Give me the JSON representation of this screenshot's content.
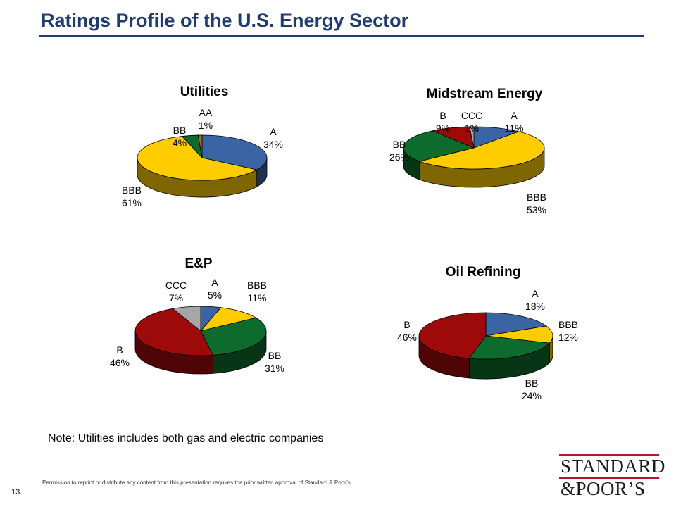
{
  "header": {
    "title": "Ratings Profile of the U.S. Energy Sector"
  },
  "colors": {
    "A": "#3a64a4",
    "BBB": "#ffcc00",
    "BB": "#0d6b2e",
    "B": "#9e0a0a",
    "CCC": "#a6a6a6",
    "AA": "#c05a1e",
    "title": "#1f3b70",
    "logo_rule": "#b8122e"
  },
  "chart_data": [
    {
      "type": "pie",
      "title": "Utilities",
      "slices": [
        {
          "label": "A",
          "value": 34,
          "pct_label": "34%"
        },
        {
          "label": "BBB",
          "value": 61,
          "pct_label": "61%"
        },
        {
          "label": "BB",
          "value": 4,
          "pct_label": "4%"
        },
        {
          "label": "AA",
          "value": 1,
          "pct_label": "1%"
        }
      ]
    },
    {
      "type": "pie",
      "title": "Midstream Energy",
      "slices": [
        {
          "label": "A",
          "value": 11,
          "pct_label": "11%"
        },
        {
          "label": "BBB",
          "value": 53,
          "pct_label": "53%"
        },
        {
          "label": "BB",
          "value": 26,
          "pct_label": "26%"
        },
        {
          "label": "B",
          "value": 9,
          "pct_label": "9%"
        },
        {
          "label": "CCC",
          "value": 1,
          "pct_label": "1%"
        }
      ]
    },
    {
      "type": "pie",
      "title": "E&P",
      "slices": [
        {
          "label": "A",
          "value": 5,
          "pct_label": "5%"
        },
        {
          "label": "BBB",
          "value": 11,
          "pct_label": "11%"
        },
        {
          "label": "BB",
          "value": 31,
          "pct_label": "31%"
        },
        {
          "label": "B",
          "value": 46,
          "pct_label": "46%"
        },
        {
          "label": "CCC",
          "value": 7,
          "pct_label": "7%"
        }
      ]
    },
    {
      "type": "pie",
      "title": "Oil Refining",
      "slices": [
        {
          "label": "A",
          "value": 18,
          "pct_label": "18%"
        },
        {
          "label": "BBB",
          "value": 12,
          "pct_label": "12%"
        },
        {
          "label": "BB",
          "value": 24,
          "pct_label": "24%"
        },
        {
          "label": "B",
          "value": 46,
          "pct_label": "46%"
        }
      ]
    }
  ],
  "note": "Note:  Utilities includes both gas and electric companies",
  "footer": {
    "page_number": "13.",
    "permission": "Permission to reprint or distribute any content from this presentation requires the prior written approval of Standard & Poor’s."
  },
  "logo": {
    "line1": "STANDARD",
    "line2": "&POOR’S"
  }
}
